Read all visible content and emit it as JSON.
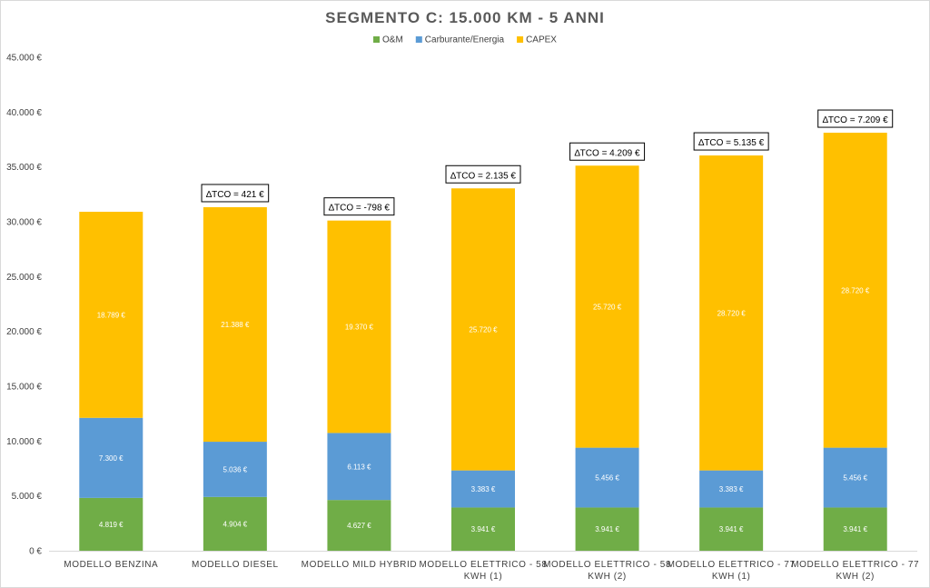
{
  "chart_data": {
    "type": "bar",
    "stacked": true,
    "title": "SEGMENTO C: 15.000 KM - 5 ANNI",
    "xlabel": "",
    "ylabel": "",
    "ylim": [
      0,
      45000
    ],
    "yticks": [
      0,
      5000,
      10000,
      15000,
      20000,
      25000,
      30000,
      35000,
      40000,
      45000
    ],
    "ytick_labels": [
      "0 €",
      "5.000 €",
      "10.000 €",
      "15.000 €",
      "20.000 €",
      "25.000 €",
      "30.000 €",
      "35.000 €",
      "40.000 €",
      "45.000 €"
    ],
    "grid": false,
    "legend_position": "top",
    "categories": [
      [
        "MODELLO BENZINA"
      ],
      [
        "MODELLO DIESEL"
      ],
      [
        "MODELLO MILD HYBRID"
      ],
      [
        "MODELLO ELETTRICO - 58",
        "KWH (1)"
      ],
      [
        "MODELLO ELETTRICO - 58",
        "KWH (2)"
      ],
      [
        "MODELLO ELETTRICO - 77",
        "KWH (1)"
      ],
      [
        "MODELLO ELETTRICO - 77",
        "KWH (2)"
      ]
    ],
    "series": [
      {
        "name": "O&M",
        "color": "#70ad47",
        "values": [
          4819,
          4904,
          4627,
          3941,
          3941,
          3941,
          3941
        ],
        "labels": [
          "4.819 €",
          "4.904 €",
          "4.627 €",
          "3.941 €",
          "3.941 €",
          "3.941 €",
          "3.941 €"
        ]
      },
      {
        "name": "Carburante/Energia",
        "color": "#5b9bd5",
        "values": [
          7300,
          5036,
          6113,
          3383,
          5456,
          3383,
          5456
        ],
        "labels": [
          "7.300 €",
          "5.036 €",
          "6.113 €",
          "3.383 €",
          "5.456 €",
          "3.383 €",
          "5.456 €"
        ]
      },
      {
        "name": "CAPEX",
        "color": "#ffc000",
        "values": [
          18789,
          21388,
          19370,
          25720,
          25720,
          28720,
          28720
        ],
        "labels": [
          "18.789 €",
          "21.388 €",
          "19.370 €",
          "25.720 €",
          "25.720 €",
          "28.720 €",
          "28.720 €"
        ]
      }
    ],
    "annotations": [
      "",
      "∆TCO = 421 €",
      "∆TCO = -798 €",
      "∆TCO = 2.135 €",
      "∆TCO = 4.209 €",
      "∆TCO = 5.135 €",
      "∆TCO = 7.209 €"
    ]
  }
}
